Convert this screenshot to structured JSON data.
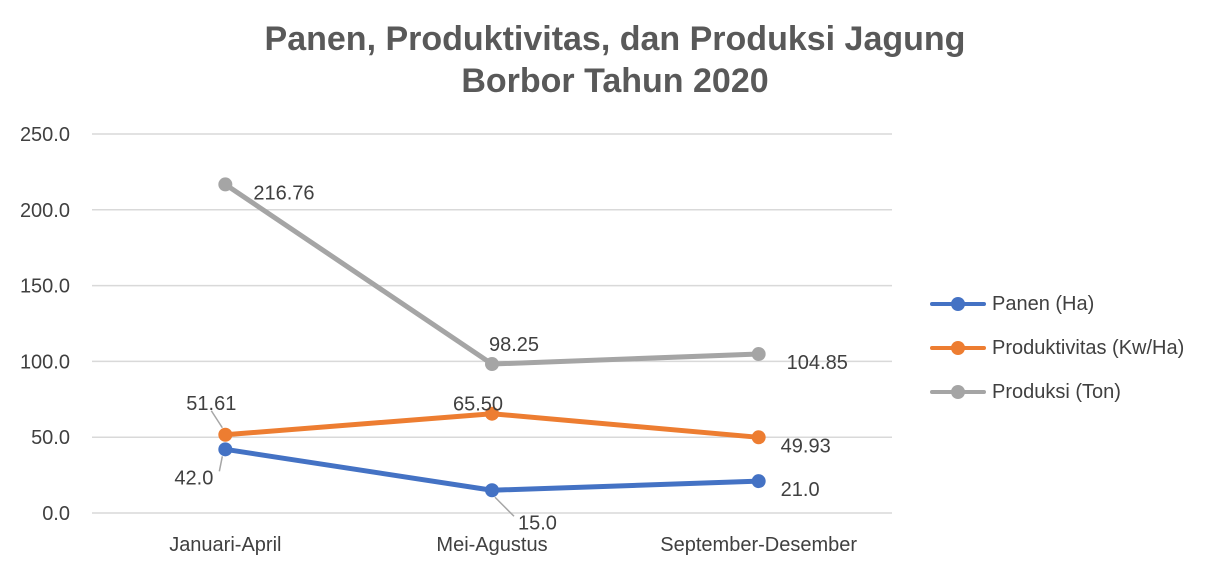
{
  "chart_data": {
    "type": "line",
    "title_line1": "Panen, Produktivitas, dan Produksi Jagung",
    "title_line2": "Borbor Tahun 2020",
    "categories": [
      "Januari-April",
      "Mei-Agustus",
      "September-Desember"
    ],
    "ylim": [
      0,
      250
    ],
    "yticks": [
      "0.0",
      "50.0",
      "100.0",
      "150.0",
      "200.0",
      "250.0"
    ],
    "grid": true,
    "legend_position": "right",
    "series": [
      {
        "name": "Panen (Ha)",
        "color": "#4472C4",
        "values": [
          42.0,
          15.0,
          21.0
        ],
        "labels": [
          "42.0",
          "15.0",
          "21.0"
        ]
      },
      {
        "name": "Produktivitas (Kw/Ha)",
        "color": "#ED7D31",
        "values": [
          51.61,
          65.5,
          49.93
        ],
        "labels": [
          "51.61",
          "65.50",
          "49.93"
        ]
      },
      {
        "name": "Produksi (Ton)",
        "color": "#A5A5A5",
        "values": [
          216.76,
          98.25,
          104.85
        ],
        "labels": [
          "216.76",
          "98.25",
          "104.85"
        ]
      }
    ]
  }
}
